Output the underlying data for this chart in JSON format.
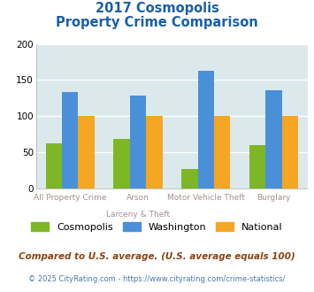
{
  "title_line1": "2017 Cosmopolis",
  "title_line2": "Property Crime Comparison",
  "cosmopolis": [
    62,
    68,
    27,
    60
  ],
  "washington": [
    133,
    128,
    163,
    136
  ],
  "national": [
    100,
    100,
    100,
    100
  ],
  "colors": {
    "cosmopolis": "#7db726",
    "washington": "#4a90d9",
    "national": "#f5a623"
  },
  "ylim": [
    0,
    200
  ],
  "yticks": [
    0,
    50,
    100,
    150,
    200
  ],
  "background_color": "#dce9ec",
  "title_color": "#1a5fa8",
  "x_labels_top": [
    "All Property Crime",
    "Arson",
    "Motor Vehicle Theft",
    "Burglary"
  ],
  "x_labels_bot": [
    "",
    "Larceny & Theft",
    "",
    ""
  ],
  "legend_labels": [
    "Cosmopolis",
    "Washington",
    "National"
  ],
  "footnote": "Compared to U.S. average. (U.S. average equals 100)",
  "copyright": "© 2025 CityRating.com - https://www.cityrating.com/crime-statistics/",
  "xlabel_color": "#a89090",
  "footnote_color": "#8b4513",
  "copyright_color": "#4a7aaa"
}
